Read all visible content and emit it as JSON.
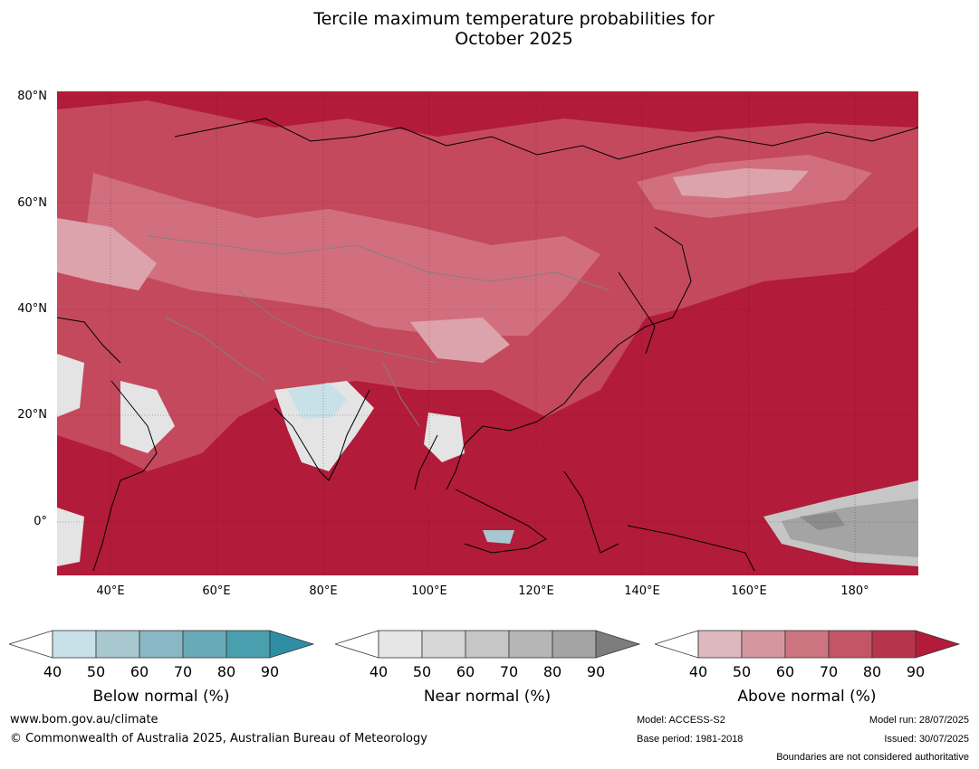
{
  "title_line1": "Tercile maximum temperature probabilities for",
  "title_line2": "October 2025",
  "map": {
    "lat_labels": [
      "80°N",
      "60°N",
      "40°N",
      "20°N",
      "0°"
    ],
    "lon_labels": [
      "40°E",
      "60°E",
      "80°E",
      "100°E",
      "120°E",
      "140°E",
      "160°E",
      "180°"
    ],
    "colors": {
      "above_dark": "#b21b3a",
      "above_mid": "#c4495d",
      "above_light": "#d26f7f",
      "above_pale": "#dda3ad",
      "near_light": "#e4e4e4",
      "near_mid": "#b4b4b4",
      "near_dark": "#8c8c8c",
      "below_light": "#c8e1e8",
      "coast": "#000000",
      "border": "#808080"
    }
  },
  "colorbars": [
    {
      "label": "Below normal (%)",
      "ticks": [
        "40",
        "50",
        "60",
        "70",
        "80",
        "90"
      ],
      "colors": [
        "#c8e1e8",
        "#a8c8cf",
        "#89b7c3",
        "#69aab8",
        "#4a9fae",
        "#2f8ea3"
      ]
    },
    {
      "label": "Near normal (%)",
      "ticks": [
        "40",
        "50",
        "60",
        "70",
        "80",
        "90"
      ],
      "colors": [
        "#e6e6e6",
        "#d7d7d7",
        "#c6c6c6",
        "#b6b6b6",
        "#a4a4a4",
        "#7d7d7d"
      ]
    },
    {
      "label": "Above normal (%)",
      "ticks": [
        "40",
        "50",
        "60",
        "70",
        "80",
        "90"
      ],
      "colors": [
        "#ddb8bd",
        "#d6969f",
        "#cc7581",
        "#c25566",
        "#b7354c",
        "#b21b3a"
      ]
    }
  ],
  "footer": {
    "website": "www.bom.gov.au/climate",
    "copyright": "© Commonwealth of Australia 2025, Australian Bureau of Meteorology",
    "model": "Model: ACCESS-S2",
    "base_period": "Base period: 1981-2018",
    "model_run": "Model run: 28/07/2025",
    "issued": "Issued: 30/07/2025",
    "disclaimer": "Boundaries are not considered authoritative"
  }
}
